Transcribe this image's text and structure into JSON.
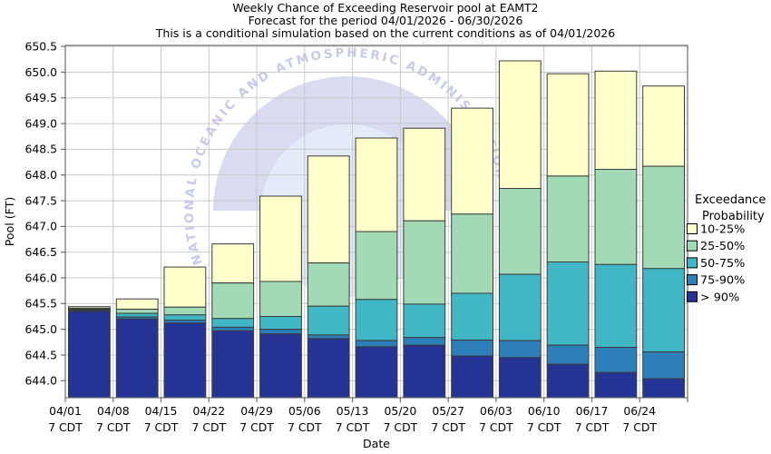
{
  "watermark_text": "NATIONAL OCEANIC AND ATMOSPHERIC ADMINISTRATION",
  "chart_data": {
    "type": "bar",
    "stacked": true,
    "title": "Weekly Chance of Exceeding Reservoir pool at EAMT2",
    "subtitle1": "Forecast for the period 04/01/2026 - 06/30/2026",
    "subtitle2": "This is a conditional simulation based on the current conditions as of 04/01/2026",
    "xlabel": "Date",
    "ylabel": "Pool (FT)",
    "ylim": [
      643.67,
      650.52
    ],
    "yticks": [
      644.0,
      644.5,
      645.0,
      645.5,
      646.0,
      646.5,
      647.0,
      647.5,
      648.0,
      648.5,
      649.0,
      649.5,
      650.0,
      650.5
    ],
    "grid": true,
    "time_label": "7 CDT",
    "legend": {
      "title_line1": "Exceedance",
      "title_line2": "Probability",
      "position": "right"
    },
    "bands": [
      {
        "label": "10-25%",
        "color": "#FFFFCC"
      },
      {
        "label": "25-50%",
        "color": "#A1DAB4"
      },
      {
        "label": "50-75%",
        "color": "#41B6C4"
      },
      {
        "label": "75-90%",
        "color": "#2C7FB8"
      },
      {
        "label": "> 90%",
        "color": "#253494"
      }
    ],
    "bars": [
      {
        "date": "04/01",
        "p10": 645.44,
        "p25": 645.41,
        "p50": 645.39,
        "p75": 645.37,
        "p90": 645.35
      },
      {
        "date": "04/08",
        "p10": 645.59,
        "p25": 645.39,
        "p50": 645.31,
        "p75": 645.24,
        "p90": 645.2
      },
      {
        "date": "04/15",
        "p10": 646.21,
        "p25": 645.43,
        "p50": 645.28,
        "p75": 645.18,
        "p90": 645.12
      },
      {
        "date": "04/22",
        "p10": 646.66,
        "p25": 645.9,
        "p50": 645.21,
        "p75": 645.04,
        "p90": 644.97
      },
      {
        "date": "04/29",
        "p10": 647.59,
        "p25": 645.93,
        "p50": 645.25,
        "p75": 645.0,
        "p90": 644.91
      },
      {
        "date": "05/06",
        "p10": 648.37,
        "p25": 646.29,
        "p50": 645.45,
        "p75": 644.89,
        "p90": 644.82
      },
      {
        "date": "05/13",
        "p10": 648.72,
        "p25": 646.9,
        "p50": 645.58,
        "p75": 644.78,
        "p90": 644.66
      },
      {
        "date": "05/20",
        "p10": 648.91,
        "p25": 647.11,
        "p50": 645.49,
        "p75": 644.84,
        "p90": 644.69
      },
      {
        "date": "05/27",
        "p10": 649.3,
        "p25": 647.24,
        "p50": 645.7,
        "p75": 644.79,
        "p90": 644.48
      },
      {
        "date": "06/03",
        "p10": 650.22,
        "p25": 647.74,
        "p50": 646.07,
        "p75": 644.78,
        "p90": 644.45
      },
      {
        "date": "06/10",
        "p10": 649.97,
        "p25": 647.98,
        "p50": 646.31,
        "p75": 644.69,
        "p90": 644.32
      },
      {
        "date": "06/17",
        "p10": 650.02,
        "p25": 648.11,
        "p50": 646.26,
        "p75": 644.65,
        "p90": 644.16
      },
      {
        "date": "06/24",
        "p10": 649.73,
        "p25": 648.17,
        "p50": 646.18,
        "p75": 644.56,
        "p90": 644.04
      }
    ],
    "colors": {
      "grid": "#c9c9c9",
      "frame": "#6e6e6e",
      "bar_outline": "#3b3b3b",
      "text": "#000000",
      "watermark_lavender": "#d9dbf1",
      "watermark_blue": "#e3ebf9",
      "watermark_text": "#c7cbea"
    }
  }
}
